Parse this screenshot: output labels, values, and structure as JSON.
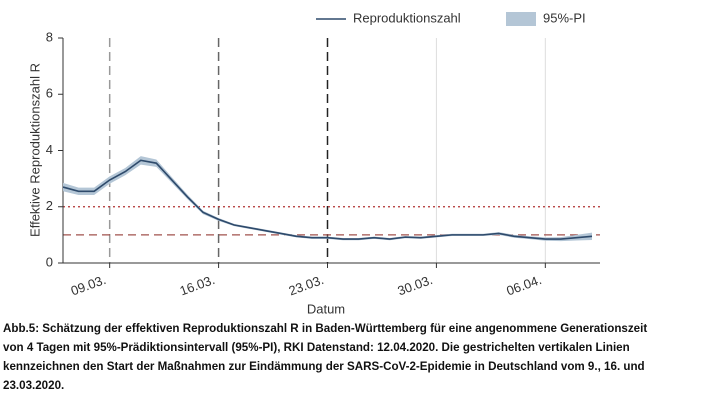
{
  "chart_data": {
    "type": "line",
    "x_label": "Datum",
    "y_label": "Effektive Reproduktionszahl R",
    "x": [
      "06.03.",
      "07.03.",
      "08.03.",
      "09.03.",
      "10.03.",
      "11.03.",
      "12.03.",
      "13.03.",
      "14.03.",
      "15.03.",
      "16.03.",
      "17.03.",
      "18.03.",
      "19.03.",
      "20.03.",
      "21.03.",
      "22.03.",
      "23.03.",
      "24.03.",
      "25.03.",
      "26.03.",
      "27.03.",
      "28.03.",
      "29.03.",
      "30.03.",
      "31.03.",
      "01.04.",
      "02.04.",
      "03.04.",
      "04.04.",
      "05.04.",
      "06.04.",
      "07.04.",
      "08.04.",
      "09.04."
    ],
    "series": [
      {
        "name": "Reproduktionszahl",
        "color": "#2e4a6b",
        "values": [
          2.7,
          2.55,
          2.55,
          2.95,
          3.25,
          3.65,
          3.55,
          2.95,
          2.35,
          1.8,
          1.55,
          1.35,
          1.25,
          1.15,
          1.05,
          0.95,
          0.9,
          0.9,
          0.85,
          0.85,
          0.9,
          0.85,
          0.92,
          0.9,
          0.95,
          1.0,
          1.0,
          1.0,
          1.05,
          0.95,
          0.9,
          0.85,
          0.85,
          0.9,
          0.95
        ]
      }
    ],
    "band": {
      "name": "95%-PI",
      "color": "#b4c6d6",
      "lower": [
        2.55,
        2.42,
        2.42,
        2.82,
        3.12,
        3.5,
        3.42,
        2.85,
        2.27,
        1.74,
        1.5,
        1.31,
        1.21,
        1.11,
        1.01,
        0.91,
        0.86,
        0.86,
        0.81,
        0.81,
        0.86,
        0.81,
        0.88,
        0.86,
        0.91,
        0.96,
        0.96,
        0.96,
        1.0,
        0.9,
        0.85,
        0.79,
        0.78,
        0.8,
        0.82
      ],
      "upper": [
        2.85,
        2.68,
        2.68,
        3.08,
        3.38,
        3.8,
        3.68,
        3.05,
        2.43,
        1.86,
        1.6,
        1.39,
        1.29,
        1.19,
        1.09,
        0.99,
        0.94,
        0.94,
        0.89,
        0.89,
        0.94,
        0.89,
        0.96,
        0.94,
        0.99,
        1.04,
        1.04,
        1.04,
        1.1,
        1.0,
        0.95,
        0.91,
        0.92,
        1.0,
        1.08
      ]
    },
    "xlim": [
      "06.03.",
      "09.04."
    ],
    "xticks": [
      "09.03.",
      "16.03.",
      "23.03.",
      "30.03.",
      "06.04."
    ],
    "ylim": [
      0,
      8
    ],
    "yticks": [
      0,
      2,
      4,
      6,
      8
    ],
    "vlines": [
      {
        "x": "09.03.",
        "color": "#999999",
        "dash": true
      },
      {
        "x": "16.03.",
        "color": "#666666",
        "dash": true
      },
      {
        "x": "23.03.",
        "color": "#222222",
        "dash": true
      },
      {
        "x": "30.03.",
        "color": "#dddddd",
        "dash": false
      },
      {
        "x": "06.04.",
        "color": "#dddddd",
        "dash": false
      }
    ],
    "hlines": [
      {
        "y": 1,
        "color": "#a0524d",
        "dash": "8,5"
      },
      {
        "y": 2,
        "color": "#b03030",
        "dash": "2,3"
      }
    ],
    "legend": "top-right"
  },
  "caption": [
    "Abb.5: Schätzung der effektiven Reproduktionszahl R in Baden-Württemberg für eine angenommene Generationszeit",
    "von 4 Tagen mit 95%-Prädiktionsintervall (95%-PI), RKI Datenstand: 12.04.2020. Die gestrichelten vertikalen Linien",
    "kennzeichnen den Start der Maßnahmen zur Eindämmung der SARS-CoV-2-Epidemie in Deutschland vom 9., 16. und",
    "23.03.2020."
  ]
}
